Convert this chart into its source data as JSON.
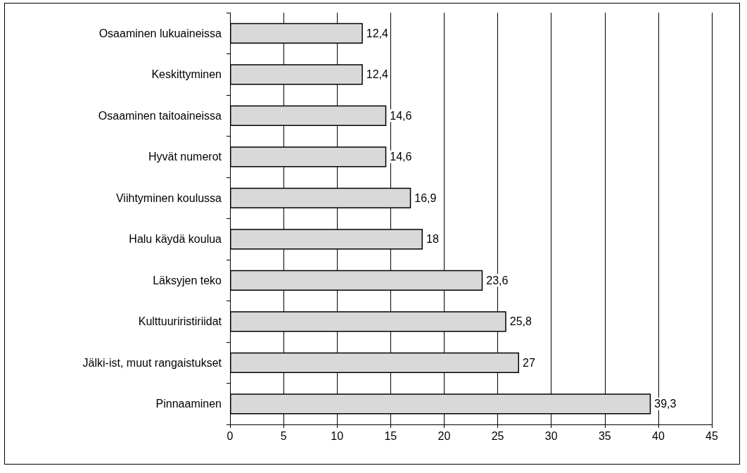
{
  "chart_data": {
    "type": "bar",
    "orientation": "horizontal",
    "categories": [
      "Osaaminen lukuaineissa",
      "Keskittyminen",
      "Osaaminen taitoaineissa",
      "Hyvät numerot",
      "Viihtyminen koulussa",
      "Halu käydä koulua",
      "Läksyjen teko",
      "Kulttuuriristiriidat",
      "Jälki-ist, muut rangaistukset",
      "Pinnaaminen"
    ],
    "values": [
      12.4,
      12.4,
      14.6,
      14.6,
      16.9,
      18,
      23.6,
      25.8,
      27,
      39.3
    ],
    "value_labels": [
      "12,4",
      "12,4",
      "14,6",
      "14,6",
      "16,9",
      "18",
      "23,6",
      "25,8",
      "27",
      "39,3"
    ],
    "color": "#d9d9d9",
    "xlim": [
      0,
      45
    ],
    "xticks": [
      0,
      5,
      10,
      15,
      20,
      25,
      30,
      35,
      40,
      45
    ],
    "grid": "x"
  }
}
